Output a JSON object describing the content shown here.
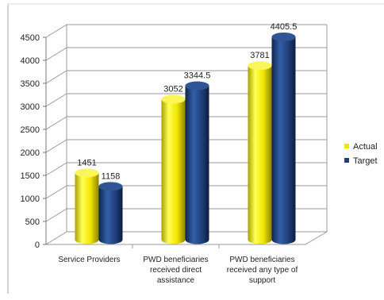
{
  "chart_data": {
    "type": "bar",
    "title": "",
    "xlabel": "",
    "ylabel": "",
    "ylim": [
      0,
      4500
    ],
    "yticks": [
      0,
      500,
      1000,
      1500,
      2000,
      2500,
      3000,
      3500,
      4000,
      4500
    ],
    "grid": true,
    "legend_position": "right",
    "categories": [
      [
        "Service Providers"
      ],
      [
        "PWD beneficiaries",
        "received direct",
        "assistance"
      ],
      [
        "PWD beneficiaries",
        "received any type of",
        "support"
      ]
    ],
    "series": [
      {
        "name": "Actual",
        "values": [
          1451,
          3052,
          3781
        ],
        "labels": [
          "1451",
          "3052",
          "3781"
        ],
        "color": "#f2e600"
      },
      {
        "name": "Target",
        "values": [
          1158,
          3344.5,
          4405.5
        ],
        "labels": [
          "1158",
          "3344.5",
          "4405.5"
        ],
        "color": "#1f3f7a"
      }
    ]
  },
  "colors": {
    "axis": "#777777",
    "grid": "#999999",
    "frame": "#aaaaaa"
  }
}
